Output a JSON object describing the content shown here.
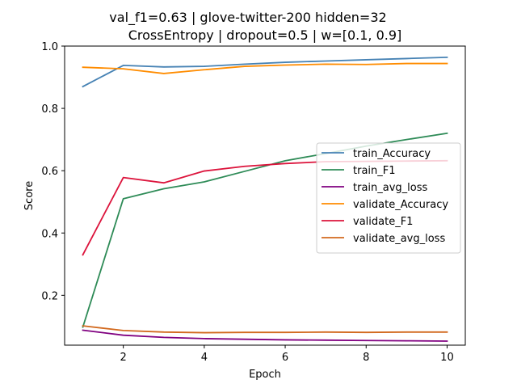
{
  "chart_data": {
    "type": "line",
    "title_line1": "val_f1=0.63 | glove-twitter-200  hidden=32",
    "title_line2": "CrossEntropy | dropout=0.5 | w=[0.1, 0.9]",
    "xlabel": "Epoch",
    "ylabel": "Score",
    "xlim": [
      0.55,
      10.45
    ],
    "ylim": [
      0.04,
      1.0
    ],
    "xticks": [
      2,
      4,
      6,
      8,
      10
    ],
    "yticks": [
      0.2,
      0.4,
      0.6,
      0.8,
      1.0
    ],
    "ytick_labels": [
      "0.2",
      "0.4",
      "0.6",
      "0.8",
      "1.0"
    ],
    "grid": false,
    "legend_position": "center-right",
    "x": [
      1,
      2,
      3,
      4,
      5,
      6,
      7,
      8,
      9,
      10
    ],
    "series": [
      {
        "name": "train_Accuracy",
        "color": "#4682b4",
        "values": [
          0.87,
          0.938,
          0.933,
          0.935,
          0.942,
          0.948,
          0.952,
          0.956,
          0.96,
          0.964
        ]
      },
      {
        "name": "train_F1",
        "color": "#2e8b57",
        "values": [
          0.098,
          0.51,
          0.542,
          0.564,
          0.598,
          0.632,
          0.655,
          0.679,
          0.7,
          0.72
        ]
      },
      {
        "name": "train_avg_loss",
        "color": "#800080",
        "values": [
          0.088,
          0.072,
          0.065,
          0.061,
          0.059,
          0.057,
          0.056,
          0.055,
          0.054,
          0.053
        ]
      },
      {
        "name": "validate_Accuracy",
        "color": "#ff8c00",
        "values": [
          0.932,
          0.927,
          0.912,
          0.924,
          0.935,
          0.939,
          0.942,
          0.941,
          0.944,
          0.944
        ]
      },
      {
        "name": "validate_F1",
        "color": "#dc143c",
        "values": [
          0.33,
          0.578,
          0.561,
          0.599,
          0.614,
          0.623,
          0.629,
          0.63,
          0.631,
          0.632
        ]
      },
      {
        "name": "validate_avg_loss",
        "color": "#d2691e",
        "values": [
          0.102,
          0.087,
          0.082,
          0.08,
          0.081,
          0.081,
          0.082,
          0.081,
          0.082,
          0.082
        ]
      }
    ]
  }
}
